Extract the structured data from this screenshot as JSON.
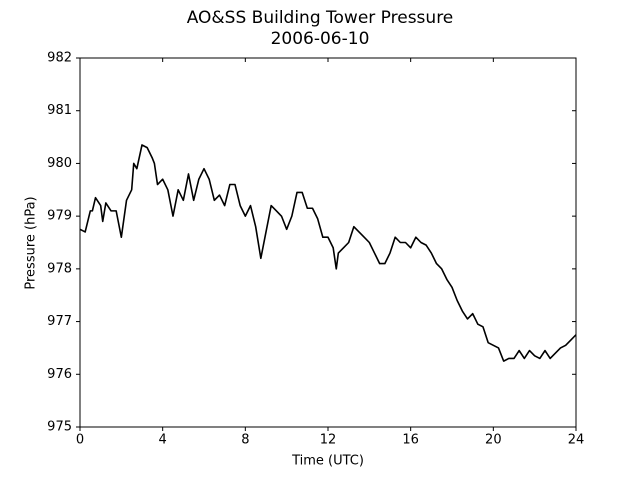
{
  "chart_data": {
    "type": "line",
    "title": "AO&SS Building Tower Pressure",
    "subtitle": "2006-06-10",
    "x_label": "Time (UTC)",
    "y_label": "Pressure (hPa)",
    "xlim": [
      0,
      24
    ],
    "xticks": [
      0,
      4,
      8,
      12,
      16,
      20,
      24
    ],
    "ylim": [
      975,
      982
    ],
    "yticks": [
      975,
      976,
      977,
      978,
      979,
      980,
      981,
      982
    ],
    "grid": false,
    "series": [
      {
        "color": "#000000",
        "x": [
          0,
          0.25,
          0.5,
          0.6,
          0.75,
          1,
          1.1,
          1.25,
          1.5,
          1.75,
          2,
          2.25,
          2.5,
          2.6,
          2.75,
          3,
          3.25,
          3.5,
          3.6,
          3.75,
          4,
          4.25,
          4.5,
          4.75,
          5,
          5.25,
          5.5,
          5.75,
          6,
          6.25,
          6.5,
          6.75,
          7,
          7.25,
          7.5,
          7.75,
          8,
          8.25,
          8.5,
          8.75,
          9,
          9.25,
          9.5,
          9.75,
          10,
          10.25,
          10.5,
          10.75,
          11,
          11.25,
          11.5,
          11.75,
          12,
          12.25,
          12.4,
          12.5,
          12.75,
          13,
          13.25,
          13.5,
          13.75,
          14,
          14.25,
          14.5,
          14.75,
          15,
          15.25,
          15.5,
          15.75,
          16,
          16.25,
          16.5,
          16.75,
          17,
          17.25,
          17.5,
          17.75,
          18,
          18.25,
          18.5,
          18.75,
          19,
          19.25,
          19.5,
          19.75,
          20,
          20.25,
          20.5,
          20.75,
          21,
          21.25,
          21.5,
          21.75,
          22,
          22.25,
          22.5,
          22.75,
          23,
          23.25,
          23.5,
          23.75,
          24
        ],
        "values": [
          978.75,
          978.7,
          979.1,
          979.1,
          979.35,
          979.2,
          978.9,
          979.25,
          979.1,
          979.1,
          978.6,
          979.3,
          979.5,
          980.0,
          979.9,
          980.35,
          980.3,
          980.1,
          980.0,
          979.6,
          979.7,
          979.5,
          979.0,
          979.5,
          979.3,
          979.8,
          979.3,
          979.7,
          979.9,
          979.7,
          979.3,
          979.4,
          979.2,
          979.6,
          979.6,
          979.2,
          979.0,
          979.2,
          978.8,
          978.2,
          978.7,
          979.2,
          979.1,
          979.0,
          978.75,
          979.0,
          979.45,
          979.45,
          979.15,
          979.15,
          978.95,
          978.6,
          978.6,
          978.4,
          978.0,
          978.3,
          978.4,
          978.5,
          978.8,
          978.7,
          978.6,
          978.5,
          978.3,
          978.1,
          978.1,
          978.3,
          978.6,
          978.5,
          978.5,
          978.4,
          978.6,
          978.5,
          978.45,
          978.3,
          978.1,
          978.0,
          977.8,
          977.65,
          977.4,
          977.2,
          977.05,
          977.15,
          976.95,
          976.9,
          976.6,
          976.55,
          976.5,
          976.25,
          976.3,
          976.3,
          976.45,
          976.3,
          976.45,
          976.35,
          976.3,
          976.45,
          976.3,
          976.4,
          976.5,
          976.55,
          976.65,
          976.75
        ]
      }
    ]
  }
}
